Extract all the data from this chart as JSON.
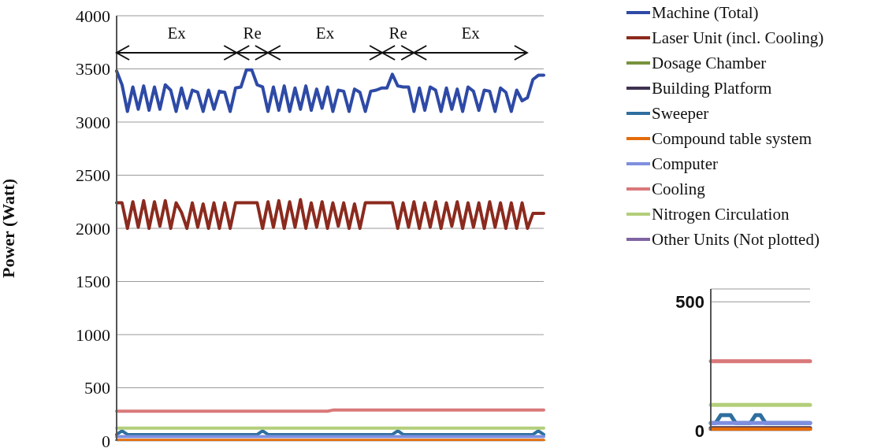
{
  "chart_data": [
    {
      "type": "line",
      "ylabel": "Power (Watt)",
      "categories": [
        null,
        null,
        null,
        null,
        null,
        null,
        null,
        null,
        null,
        null,
        null,
        null,
        null,
        null,
        null,
        null,
        null,
        null,
        null,
        null,
        null,
        null,
        null,
        null,
        null,
        null,
        null,
        null,
        null,
        null,
        null,
        null,
        null,
        null,
        null,
        null,
        null,
        null,
        null,
        null,
        null,
        null,
        null,
        null,
        null,
        null,
        null,
        null,
        null,
        null,
        null,
        null,
        null,
        null,
        null,
        null,
        null,
        null,
        null,
        null,
        null,
        null,
        null,
        null,
        null,
        null,
        null,
        null,
        null,
        null,
        null,
        null,
        null,
        null,
        null,
        null,
        null,
        null,
        null,
        null
      ],
      "ylim": [
        0,
        4000
      ],
      "yticks": [
        0,
        500,
        1000,
        1500,
        2000,
        2500,
        3000,
        3500,
        4000
      ],
      "grid": "y",
      "legend": "right",
      "tick_labels": "y",
      "marker": "none",
      "line_style": "solid",
      "annotations": [
        "Ex",
        "Re",
        "Ex",
        "Re",
        "Ex"
      ],
      "series": [
        {
          "name": "Machine (Total)",
          "color": "#2e4aa6",
          "values": [
            3480,
            3350,
            3100,
            3330,
            3120,
            3340,
            3110,
            3330,
            3120,
            3350,
            3300,
            3100,
            3320,
            3130,
            3300,
            3280,
            3100,
            3300,
            3120,
            3290,
            3280,
            3100,
            3320,
            3330,
            3490,
            3490,
            3350,
            3330,
            3100,
            3330,
            3110,
            3340,
            3100,
            3320,
            3120,
            3340,
            3110,
            3310,
            3130,
            3330,
            3100,
            3300,
            3290,
            3100,
            3310,
            3280,
            3100,
            3290,
            3300,
            3320,
            3320,
            3450,
            3340,
            3330,
            3330,
            3100,
            3320,
            3110,
            3330,
            3300,
            3100,
            3320,
            3120,
            3310,
            3100,
            3330,
            3290,
            3110,
            3300,
            3290,
            3100,
            3320,
            3280,
            3100,
            3300,
            3200,
            3230,
            3400,
            3440,
            3440
          ]
        },
        {
          "name": "Laser Unit (incl. Cooling)",
          "color": "#8b2a1e",
          "values": [
            2240,
            2240,
            2000,
            2250,
            2010,
            2260,
            2000,
            2250,
            2020,
            2260,
            2000,
            2240,
            2150,
            2000,
            2240,
            2010,
            2230,
            2000,
            2240,
            2000,
            2240,
            2000,
            2240,
            2240,
            2240,
            2240,
            2240,
            2000,
            2250,
            2010,
            2260,
            2000,
            2250,
            2010,
            2270,
            2000,
            2240,
            2010,
            2250,
            2000,
            2240,
            2020,
            2240,
            2000,
            2230,
            2000,
            2240,
            2240,
            2240,
            2240,
            2240,
            2240,
            2000,
            2240,
            2010,
            2250,
            2000,
            2240,
            2010,
            2250,
            2000,
            2240,
            2020,
            2250,
            2000,
            2240,
            2010,
            2240,
            2000,
            2250,
            2010,
            2240,
            2000,
            2240,
            2000,
            2240,
            2000,
            2140,
            2140,
            2140
          ]
        },
        {
          "name": "Dosage Chamber",
          "color": "#77933c",
          "values": [
            null,
            null,
            null,
            null,
            null,
            null,
            null,
            null,
            null,
            null,
            null,
            null,
            null,
            null,
            null,
            null,
            null,
            null,
            null,
            null,
            null,
            null,
            null,
            null,
            null,
            null,
            null,
            null,
            null,
            null,
            null,
            null,
            null,
            null,
            null,
            null,
            null,
            null,
            null,
            null,
            null,
            null,
            null,
            null,
            null,
            null,
            null,
            null,
            null,
            null,
            null,
            null,
            null,
            null,
            null,
            null,
            null,
            null,
            null,
            null,
            null,
            null,
            null,
            null,
            null,
            null,
            null,
            null,
            null,
            null,
            null,
            null,
            null,
            null,
            null,
            null,
            null,
            null,
            null,
            null
          ]
        },
        {
          "name": "Building Platform",
          "color": "#3f3151",
          "values": [
            null,
            null,
            null,
            null,
            null,
            null,
            null,
            null,
            null,
            null,
            null,
            null,
            null,
            null,
            null,
            null,
            null,
            null,
            null,
            null,
            null,
            null,
            null,
            null,
            null,
            null,
            null,
            null,
            null,
            null,
            null,
            null,
            null,
            null,
            null,
            null,
            null,
            null,
            null,
            null,
            null,
            null,
            null,
            null,
            null,
            null,
            null,
            null,
            null,
            null,
            null,
            null,
            null,
            null,
            null,
            null,
            null,
            null,
            null,
            null,
            null,
            null,
            null,
            null,
            null,
            null,
            null,
            null,
            null,
            null,
            null,
            null,
            null,
            null,
            null,
            null,
            null,
            null,
            null,
            null
          ]
        },
        {
          "name": "Sweeper",
          "color": "#2f6f9f",
          "values": [
            60,
            95,
            60,
            60,
            60,
            60,
            60,
            60,
            60,
            60,
            60,
            60,
            60,
            60,
            60,
            60,
            60,
            60,
            60,
            60,
            60,
            60,
            60,
            60,
            60,
            60,
            60,
            95,
            60,
            60,
            60,
            60,
            60,
            60,
            60,
            60,
            60,
            60,
            60,
            60,
            60,
            60,
            60,
            60,
            60,
            60,
            60,
            60,
            60,
            60,
            60,
            60,
            95,
            60,
            60,
            60,
            60,
            60,
            60,
            60,
            60,
            60,
            60,
            60,
            60,
            60,
            60,
            60,
            60,
            60,
            60,
            60,
            60,
            60,
            60,
            60,
            60,
            60,
            95,
            60
          ]
        },
        {
          "name": "Compound table system",
          "color": "#e46c0a",
          "values": [
            5,
            5,
            5,
            5,
            5,
            5,
            5,
            5,
            5,
            5,
            5,
            5,
            5,
            5,
            5,
            5,
            5,
            5,
            5,
            5,
            5,
            5,
            5,
            5,
            5,
            5,
            5,
            5,
            5,
            5,
            5,
            5,
            5,
            5,
            5,
            5,
            5,
            5,
            5,
            5,
            5,
            5,
            5,
            5,
            5,
            5,
            5,
            5,
            5,
            5,
            5,
            5,
            5,
            5,
            5,
            5,
            5,
            5,
            5,
            5,
            5,
            5,
            5,
            5,
            5,
            5,
            5,
            5,
            5,
            5,
            5,
            5,
            5,
            5,
            5,
            5,
            5,
            5,
            5,
            5
          ]
        },
        {
          "name": "Computer",
          "color": "#7f8fdf",
          "values": [
            40,
            40,
            40,
            40,
            40,
            40,
            40,
            40,
            40,
            40,
            40,
            40,
            40,
            40,
            40,
            40,
            40,
            40,
            40,
            40,
            40,
            40,
            40,
            40,
            40,
            40,
            40,
            40,
            40,
            40,
            40,
            40,
            40,
            40,
            40,
            40,
            40,
            40,
            40,
            40,
            40,
            40,
            40,
            40,
            40,
            40,
            40,
            40,
            40,
            40,
            40,
            40,
            40,
            40,
            40,
            40,
            40,
            40,
            40,
            40,
            40,
            40,
            40,
            40,
            40,
            40,
            40,
            40,
            40,
            40,
            40,
            40,
            40,
            40,
            40,
            40,
            40,
            40,
            40,
            40
          ]
        },
        {
          "name": "Cooling",
          "color": "#d9787a",
          "values": [
            280,
            280,
            280,
            280,
            280,
            280,
            280,
            280,
            280,
            280,
            280,
            280,
            280,
            280,
            280,
            280,
            280,
            280,
            280,
            280,
            280,
            280,
            280,
            280,
            280,
            280,
            280,
            280,
            280,
            280,
            280,
            280,
            280,
            280,
            280,
            280,
            280,
            280,
            280,
            280,
            290,
            290,
            290,
            290,
            290,
            290,
            290,
            290,
            290,
            290,
            290,
            290,
            290,
            290,
            290,
            290,
            290,
            290,
            290,
            290,
            290,
            290,
            290,
            290,
            290,
            290,
            290,
            290,
            290,
            290,
            290,
            290,
            290,
            290,
            290,
            290,
            290,
            290,
            290,
            290
          ]
        },
        {
          "name": "Nitrogen Circulation",
          "color": "#b3cf7b",
          "values": [
            120,
            120,
            120,
            120,
            120,
            120,
            120,
            120,
            120,
            120,
            120,
            120,
            120,
            120,
            120,
            120,
            120,
            120,
            120,
            120,
            120,
            120,
            120,
            120,
            120,
            120,
            120,
            120,
            120,
            120,
            120,
            120,
            120,
            120,
            120,
            120,
            120,
            120,
            120,
            120,
            120,
            120,
            120,
            120,
            120,
            120,
            120,
            120,
            120,
            120,
            120,
            120,
            120,
            120,
            120,
            120,
            120,
            120,
            120,
            120,
            120,
            120,
            120,
            120,
            120,
            120,
            120,
            120,
            120,
            120,
            120,
            120,
            120,
            120,
            120,
            120,
            120,
            120,
            120,
            120
          ]
        },
        {
          "name": "Other Units (Not plotted)",
          "color": "#8064a2",
          "values": [
            null,
            null,
            null,
            null,
            null,
            null,
            null,
            null,
            null,
            null,
            null,
            null,
            null,
            null,
            null,
            null,
            null,
            null,
            null,
            null,
            null,
            null,
            null,
            null,
            null,
            null,
            null,
            null,
            null,
            null,
            null,
            null,
            null,
            null,
            null,
            null,
            null,
            null,
            null,
            null,
            null,
            null,
            null,
            null,
            null,
            null,
            null,
            null,
            null,
            null,
            null,
            null,
            null,
            null,
            null,
            null,
            null,
            null,
            null,
            null,
            null,
            null,
            null,
            null,
            null,
            null,
            null,
            null,
            null,
            null,
            null,
            null,
            null,
            null,
            null,
            null,
            null,
            null,
            null,
            null
          ]
        }
      ]
    },
    {
      "type": "line",
      "categories": [
        null,
        null,
        null,
        null,
        null,
        null,
        null,
        null,
        null,
        null,
        null,
        null,
        null,
        null,
        null,
        null,
        null,
        null,
        null,
        null,
        null
      ],
      "ylim": [
        0,
        550
      ],
      "yticks": [
        0,
        500
      ],
      "grid": "y",
      "tick_labels": "y",
      "marker": "none",
      "line_style": "solid",
      "series": [
        {
          "color": "#3f3151",
          "values": [
            10,
            10,
            10,
            10,
            10,
            10,
            10,
            10,
            10,
            10,
            10,
            10,
            10,
            10,
            10,
            10,
            10,
            10,
            10,
            10,
            10
          ]
        },
        {
          "color": "#2f6f9f",
          "values": [
            30,
            30,
            60,
            60,
            60,
            30,
            30,
            30,
            30,
            60,
            60,
            30,
            30,
            30,
            30,
            30,
            30,
            30,
            30,
            30,
            30
          ]
        },
        {
          "color": "#e46c0a",
          "values": [
            5,
            5,
            5,
            5,
            5,
            5,
            5,
            5,
            5,
            5,
            5,
            5,
            5,
            5,
            5,
            5,
            5,
            5,
            5,
            5,
            5
          ]
        },
        {
          "color": "#7f8fdf",
          "values": [
            30,
            30,
            30,
            30,
            30,
            30,
            30,
            30,
            30,
            30,
            30,
            30,
            30,
            30,
            30,
            30,
            30,
            30,
            30,
            30,
            30
          ]
        },
        {
          "color": "#d9787a",
          "values": [
            270,
            270,
            270,
            270,
            270,
            270,
            270,
            270,
            270,
            270,
            270,
            270,
            270,
            270,
            270,
            270,
            270,
            270,
            270,
            270,
            270
          ]
        },
        {
          "color": "#b3cf7b",
          "values": [
            100,
            100,
            100,
            100,
            100,
            100,
            100,
            100,
            100,
            100,
            100,
            100,
            100,
            100,
            100,
            100,
            100,
            100,
            100,
            100,
            100
          ]
        }
      ]
    }
  ]
}
